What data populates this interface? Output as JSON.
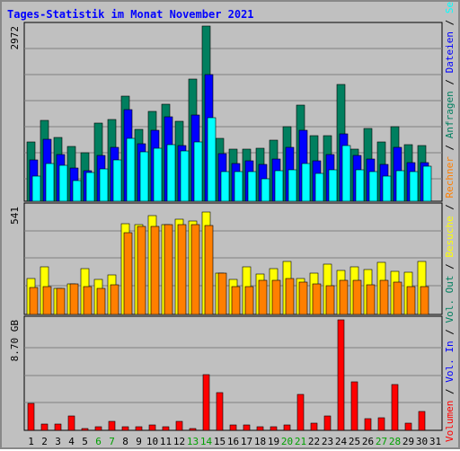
{
  "title": "Tages-Statistik im Monat November 2021",
  "chart_data": [
    {
      "type": "bar",
      "panel": "top",
      "ymax_label": "2972",
      "ylim": [
        0,
        2972
      ],
      "categories": [
        "1",
        "2",
        "3",
        "4",
        "5",
        "6",
        "7",
        "8",
        "9",
        "10",
        "11",
        "12",
        "13",
        "14",
        "15",
        "16",
        "17",
        "18",
        "19",
        "20",
        "21",
        "22",
        "23",
        "24",
        "25",
        "26",
        "27",
        "28",
        "29",
        "30",
        "31"
      ],
      "series": [
        {
          "name": "Anfragen",
          "color": "#007f5f",
          "values": [
            1000,
            1370,
            1080,
            930,
            830,
            1320,
            1390,
            1780,
            1220,
            1520,
            1650,
            1350,
            2080,
            2972,
            1070,
            880,
            890,
            900,
            1040,
            1270,
            1630,
            1110,
            1120,
            1980,
            890,
            1230,
            1000,
            1270,
            960,
            950,
            null
          ]
        },
        {
          "name": "Dateien",
          "color": "#0000ff",
          "values": [
            700,
            1050,
            790,
            570,
            520,
            780,
            910,
            1550,
            970,
            1210,
            1430,
            950,
            1460,
            2150,
            810,
            640,
            680,
            630,
            710,
            910,
            1210,
            690,
            800,
            1140,
            770,
            710,
            630,
            920,
            660,
            650,
            null
          ]
        },
        {
          "name": "Seiten",
          "color": "#00ffff",
          "values": [
            420,
            640,
            610,
            350,
            490,
            550,
            700,
            1070,
            840,
            900,
            960,
            860,
            1000,
            1420,
            500,
            500,
            500,
            380,
            520,
            530,
            640,
            480,
            540,
            940,
            540,
            500,
            420,
            520,
            500,
            600,
            null
          ]
        }
      ],
      "right_labels": [
        {
          "text": "Anfragen",
          "color": "#007f5f"
        },
        {
          "text": "Dateien",
          "color": "#0000ff"
        },
        {
          "text": "Seiten",
          "color": "#00ffff"
        }
      ]
    },
    {
      "type": "bar",
      "panel": "middle",
      "ymax_label": "541",
      "ylim": [
        0,
        541
      ],
      "categories": [
        "1",
        "2",
        "3",
        "4",
        "5",
        "6",
        "7",
        "8",
        "9",
        "10",
        "11",
        "12",
        "13",
        "14",
        "15",
        "16",
        "17",
        "18",
        "19",
        "20",
        "21",
        "22",
        "23",
        "24",
        "25",
        "26",
        "27",
        "28",
        "29",
        "30",
        "31"
      ],
      "series": [
        {
          "name": "Besuche",
          "color": "#ffff00",
          "values": [
            180,
            240,
            132,
            152,
            228,
            178,
            200,
            456,
            450,
            498,
            450,
            476,
            470,
            512,
            207,
            176,
            239,
            204,
            232,
            264,
            182,
            206,
            254,
            223,
            238,
            224,
            262,
            218,
            212,
            264,
            null
          ]
        },
        {
          "name": "Rechner",
          "color": "#ff7f00",
          "values": [
            134,
            142,
            132,
            152,
            140,
            131,
            150,
            410,
            440,
            444,
            452,
            450,
            452,
            446,
            207,
            140,
            140,
            170,
            172,
            180,
            162,
            153,
            144,
            172,
            172,
            150,
            172,
            162,
            140,
            140,
            null
          ]
        }
      ],
      "right_labels": [
        {
          "text": "Besuche",
          "color": "#ffff00"
        },
        {
          "text": "Rechner",
          "color": "#ff7f00"
        }
      ]
    },
    {
      "type": "bar",
      "panel": "bottom",
      "ymax_label": "8.70 GB",
      "unit": "GB",
      "ylim": [
        0,
        8.7
      ],
      "categories": [
        "1",
        "2",
        "3",
        "4",
        "5",
        "6",
        "7",
        "8",
        "9",
        "10",
        "11",
        "12",
        "13",
        "14",
        "15",
        "16",
        "17",
        "18",
        "19",
        "20",
        "21",
        "22",
        "23",
        "24",
        "25",
        "26",
        "27",
        "28",
        "29",
        "30",
        "31"
      ],
      "series": [
        {
          "name": "Volumen",
          "color": "#ff0000",
          "values": [
            2.1,
            0.5,
            0.5,
            1.1,
            0.15,
            0.3,
            0.7,
            0.3,
            0.25,
            0.4,
            0.3,
            0.7,
            0.15,
            4.4,
            3.0,
            0.4,
            0.4,
            0.25,
            0.25,
            0.4,
            2.8,
            0.6,
            1.1,
            8.7,
            3.8,
            0.9,
            1.0,
            3.6,
            0.6,
            1.5,
            null
          ]
        }
      ],
      "right_labels": [
        {
          "text": "Volumen",
          "color": "#ff0000"
        },
        {
          "text": "Vol. In",
          "color": "#0000ff"
        },
        {
          "text": "Vol. Out",
          "color": "#007f5f"
        }
      ]
    }
  ],
  "x_axis": {
    "labels": [
      "1",
      "2",
      "3",
      "4",
      "5",
      "6",
      "7",
      "8",
      "9",
      "10",
      "11",
      "12",
      "13",
      "14",
      "15",
      "16",
      "17",
      "18",
      "19",
      "20",
      "21",
      "22",
      "23",
      "24",
      "25",
      "26",
      "27",
      "28",
      "29",
      "30",
      "31"
    ],
    "weekend_days": [
      "6",
      "7",
      "13",
      "14",
      "20",
      "21",
      "27",
      "28"
    ],
    "weekday_color": "#000000",
    "weekend_color": "#00a000"
  },
  "right_sidebar_separator": " / ",
  "colors": {
    "background": "#c0c0c0",
    "panel": "#c0c0c0",
    "grid": "#808080",
    "title": "#0000ff"
  }
}
